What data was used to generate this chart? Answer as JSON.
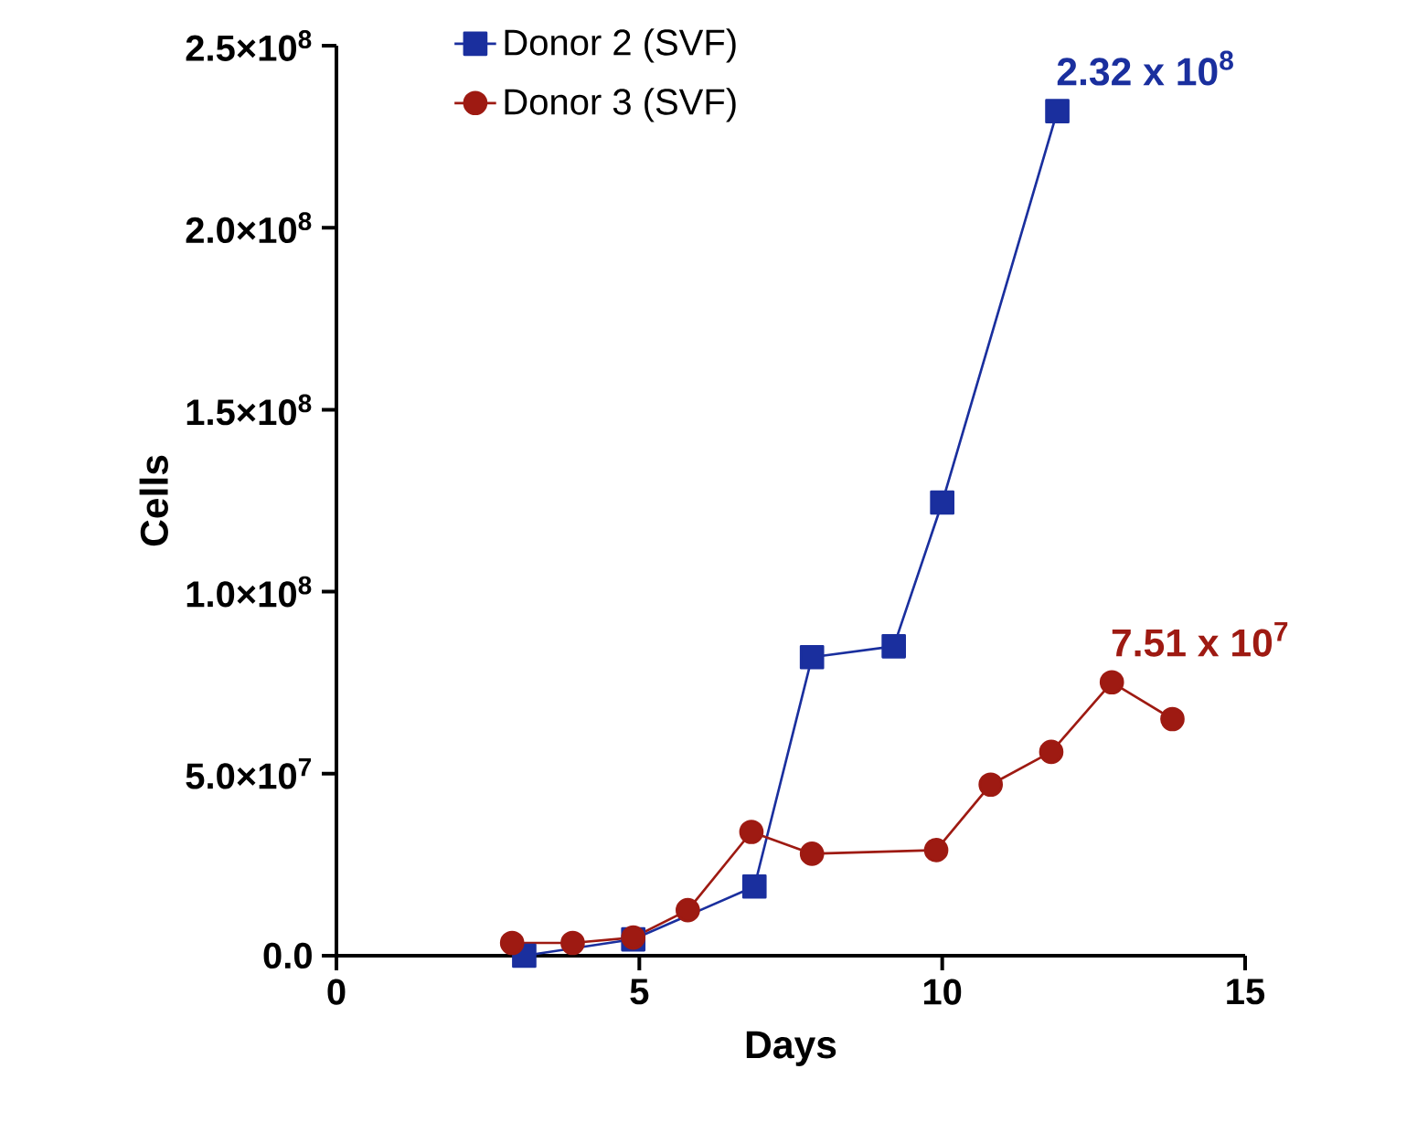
{
  "chart_data": {
    "type": "line",
    "xlabel": "Days",
    "ylabel": "Cells",
    "xlim": [
      0,
      15
    ],
    "xticks": [
      0,
      5,
      10,
      15
    ],
    "ylim": [
      0,
      250000000
    ],
    "yticks": [
      {
        "value": 0,
        "label": "0.0"
      },
      {
        "value": 50000000,
        "label": "5.0×10$^{7}$"
      },
      {
        "value": 100000000,
        "label": "1.0×10$^{8}$"
      },
      {
        "value": 150000000,
        "label": "1.5×10$^{8}$"
      },
      {
        "value": 200000000,
        "label": "2.0×10$^{8}$"
      },
      {
        "value": 250000000,
        "label": "2.5×10$^{8}$"
      }
    ],
    "grid": false,
    "legend": "top",
    "line_style": "solid",
    "series": [
      {
        "name": "Donor 2 (SVF)",
        "color": "#1a2f9e",
        "marker": "square",
        "x": [
          3.1,
          4.9,
          6.9,
          7.85,
          9.2,
          10.0,
          11.9
        ],
        "values": [
          0,
          4500000,
          19000000,
          82000000,
          85000000,
          124500000,
          232000000
        ]
      },
      {
        "name": "Donor 3 (SVF)",
        "color": "#9e1a12",
        "marker": "circle",
        "x": [
          2.9,
          3.9,
          4.9,
          5.8,
          6.85,
          7.85,
          9.9,
          10.8,
          11.8,
          12.8,
          13.8
        ],
        "values": [
          3500000,
          3500000,
          5000000,
          12500000,
          34000000,
          28000000,
          29000000,
          47000000,
          56000000,
          75100000,
          65000000
        ]
      }
    ],
    "annotations": [
      {
        "text": "2.32 x 10$^{8}$",
        "x": 11.9,
        "y": 232000000
      },
      {
        "text": "7.51 x 10$^{7}$",
        "x": 12.8,
        "y": 75100000
      }
    ]
  }
}
